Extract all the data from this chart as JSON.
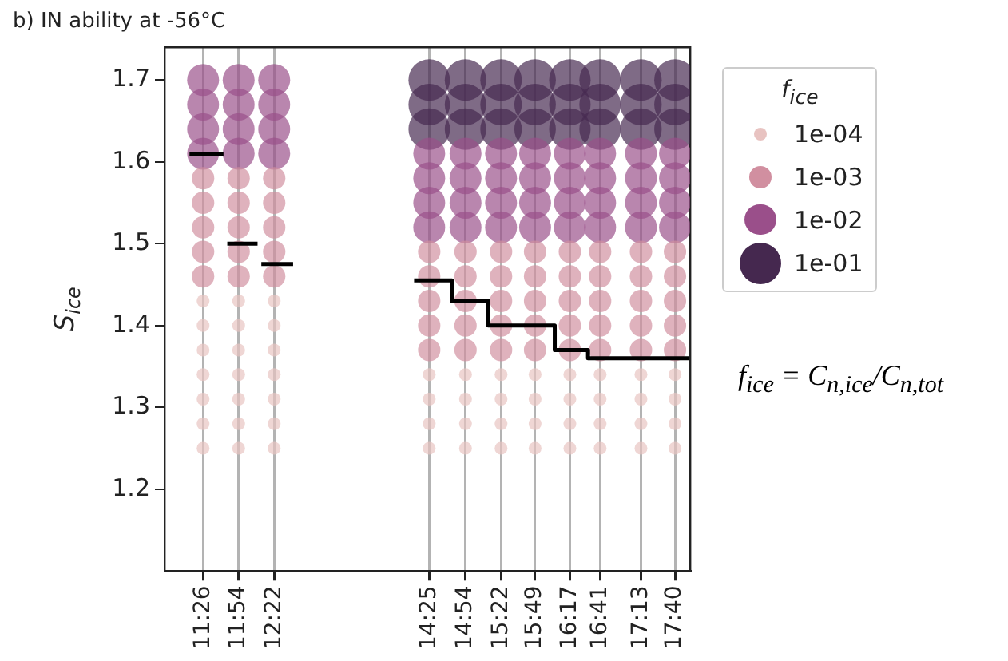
{
  "chart_data": {
    "type": "bubble",
    "title": "b) IN ability at -56°C",
    "ylabel": "S$_{ice}$",
    "legend_title": "f$_{ice}$",
    "grid": "x",
    "xlim": [
      10.92,
      17.87
    ],
    "xticks": [
      {
        "value": 11.43,
        "label": "11:26"
      },
      {
        "value": 11.9,
        "label": "11:54"
      },
      {
        "value": 12.37,
        "label": "12:22"
      },
      {
        "value": 14.42,
        "label": "14:25"
      },
      {
        "value": 14.9,
        "label": "14:54"
      },
      {
        "value": 15.37,
        "label": "15:22"
      },
      {
        "value": 15.82,
        "label": "15:49"
      },
      {
        "value": 16.28,
        "label": "16:17"
      },
      {
        "value": 16.68,
        "label": "16:41"
      },
      {
        "value": 17.22,
        "label": "17:13"
      },
      {
        "value": 17.67,
        "label": "17:40"
      }
    ],
    "ylim": [
      1.1,
      1.74
    ],
    "yticks": [
      1.2,
      1.3,
      1.4,
      1.5,
      1.6,
      1.7
    ],
    "size_legend": [
      {
        "value": 0.095,
        "label": "1e-04"
      },
      {
        "value": 0.29,
        "label": "1e-03"
      },
      {
        "value": 0.59,
        "label": "1e-02"
      },
      {
        "value": 1,
        "label": "1e-01"
      }
    ],
    "annotations": [
      "f$_{ice}$ = C$_{n,ice}$/C$_{n,tot}$"
    ],
    "series": [
      {
        "color": "#e8c3c1",
        "x": [
          11.43,
          11.43,
          11.43,
          11.43,
          11.43,
          11.43,
          11.43,
          11.9,
          11.9,
          11.9,
          11.9,
          11.9,
          11.9,
          11.9,
          12.37,
          12.37,
          12.37,
          12.37,
          12.37,
          12.37,
          12.37,
          14.42,
          14.42,
          14.42,
          14.42,
          14.9,
          14.9,
          14.9,
          14.9,
          15.37,
          15.37,
          15.37,
          15.37,
          15.82,
          15.82,
          15.82,
          15.82,
          16.28,
          16.28,
          16.28,
          16.28,
          16.68,
          16.68,
          16.68,
          16.68,
          17.22,
          17.22,
          17.22,
          17.22,
          17.67,
          17.67,
          17.67,
          17.67
        ],
        "values": [
          1.25,
          1.28,
          1.31,
          1.34,
          1.37,
          1.4,
          1.43,
          1.25,
          1.28,
          1.31,
          1.34,
          1.37,
          1.4,
          1.43,
          1.25,
          1.28,
          1.31,
          1.34,
          1.37,
          1.4,
          1.43,
          1.25,
          1.28,
          1.31,
          1.34,
          1.25,
          1.28,
          1.31,
          1.34,
          1.25,
          1.28,
          1.31,
          1.34,
          1.25,
          1.28,
          1.31,
          1.34,
          1.25,
          1.28,
          1.31,
          1.34,
          1.25,
          1.28,
          1.31,
          1.34,
          1.25,
          1.28,
          1.31,
          1.34,
          1.25,
          1.28,
          1.31,
          1.34
        ],
        "sizes": [
          0.095,
          0.095,
          0.095,
          0.095,
          0.095,
          0.095,
          0.095,
          0.095,
          0.095,
          0.095,
          0.095,
          0.095,
          0.095,
          0.095,
          0.095,
          0.095,
          0.095,
          0.095,
          0.095,
          0.095,
          0.095,
          0.095,
          0.095,
          0.095,
          0.095,
          0.095,
          0.095,
          0.095,
          0.095,
          0.095,
          0.095,
          0.095,
          0.095,
          0.095,
          0.095,
          0.095,
          0.095,
          0.095,
          0.095,
          0.095,
          0.095,
          0.095,
          0.095,
          0.095,
          0.095,
          0.095,
          0.095,
          0.095,
          0.095,
          0.095,
          0.095,
          0.095,
          0.095
        ]
      },
      {
        "color": "#d18fa0",
        "x": [
          11.43,
          11.43,
          11.43,
          11.43,
          11.43,
          11.9,
          11.9,
          11.9,
          11.9,
          11.9,
          12.37,
          12.37,
          12.37,
          12.37,
          12.37,
          14.42,
          14.42,
          14.42,
          14.42,
          14.42,
          14.9,
          14.9,
          14.9,
          14.9,
          14.9,
          15.37,
          15.37,
          15.37,
          15.37,
          15.37,
          15.82,
          15.82,
          15.82,
          15.82,
          15.82,
          16.28,
          16.28,
          16.28,
          16.28,
          16.28,
          16.68,
          16.68,
          16.68,
          16.68,
          16.68,
          17.22,
          17.22,
          17.22,
          17.22,
          17.22,
          17.67,
          17.67,
          17.67,
          17.67,
          17.67
        ],
        "values": [
          1.46,
          1.49,
          1.52,
          1.55,
          1.58,
          1.46,
          1.49,
          1.52,
          1.55,
          1.58,
          1.46,
          1.49,
          1.52,
          1.55,
          1.58,
          1.37,
          1.4,
          1.43,
          1.46,
          1.49,
          1.37,
          1.4,
          1.43,
          1.46,
          1.49,
          1.37,
          1.4,
          1.43,
          1.46,
          1.49,
          1.37,
          1.4,
          1.43,
          1.46,
          1.49,
          1.37,
          1.4,
          1.43,
          1.46,
          1.49,
          1.37,
          1.4,
          1.43,
          1.46,
          1.49,
          1.37,
          1.4,
          1.43,
          1.46,
          1.49,
          1.37,
          1.4,
          1.43,
          1.46,
          1.49
        ],
        "sizes": [
          0.29,
          0.29,
          0.29,
          0.29,
          0.29,
          0.29,
          0.29,
          0.29,
          0.29,
          0.29,
          0.29,
          0.29,
          0.29,
          0.29,
          0.29,
          0.29,
          0.29,
          0.29,
          0.29,
          0.29,
          0.29,
          0.29,
          0.29,
          0.29,
          0.29,
          0.29,
          0.29,
          0.29,
          0.29,
          0.29,
          0.29,
          0.29,
          0.29,
          0.29,
          0.29,
          0.29,
          0.29,
          0.29,
          0.29,
          0.29,
          0.29,
          0.29,
          0.29,
          0.29,
          0.29,
          0.29,
          0.29,
          0.29,
          0.29,
          0.29,
          0.29,
          0.29,
          0.29,
          0.29,
          0.29
        ]
      },
      {
        "color": "#9a4f8a",
        "x": [
          11.43,
          11.43,
          11.43,
          11.43,
          11.9,
          11.9,
          11.9,
          11.9,
          12.37,
          12.37,
          12.37,
          12.37,
          14.42,
          14.42,
          14.42,
          14.42,
          14.9,
          14.9,
          14.9,
          14.9,
          15.37,
          15.37,
          15.37,
          15.37,
          15.82,
          15.82,
          15.82,
          15.82,
          16.28,
          16.28,
          16.28,
          16.28,
          16.68,
          16.68,
          16.68,
          16.68,
          17.22,
          17.22,
          17.22,
          17.22,
          17.67,
          17.67,
          17.67,
          17.67
        ],
        "values": [
          1.61,
          1.64,
          1.67,
          1.7,
          1.61,
          1.64,
          1.67,
          1.7,
          1.61,
          1.64,
          1.67,
          1.7,
          1.52,
          1.55,
          1.58,
          1.61,
          1.52,
          1.55,
          1.58,
          1.61,
          1.52,
          1.55,
          1.58,
          1.61,
          1.52,
          1.55,
          1.58,
          1.61,
          1.52,
          1.55,
          1.58,
          1.61,
          1.52,
          1.55,
          1.58,
          1.61,
          1.52,
          1.55,
          1.58,
          1.61,
          1.52,
          1.55,
          1.58,
          1.61
        ],
        "sizes": [
          0.59,
          0.59,
          0.59,
          0.59,
          0.59,
          0.59,
          0.59,
          0.59,
          0.59,
          0.59,
          0.59,
          0.59,
          0.59,
          0.59,
          0.59,
          0.59,
          0.59,
          0.59,
          0.59,
          0.59,
          0.59,
          0.59,
          0.59,
          0.59,
          0.59,
          0.59,
          0.59,
          0.59,
          0.59,
          0.59,
          0.59,
          0.59,
          0.59,
          0.59,
          0.59,
          0.59,
          0.59,
          0.59,
          0.59,
          0.59,
          0.59,
          0.59,
          0.59,
          0.59
        ]
      },
      {
        "color": "#45284f",
        "x": [
          14.42,
          14.42,
          14.42,
          14.9,
          14.9,
          14.9,
          15.37,
          15.37,
          15.37,
          15.82,
          15.82,
          15.82,
          16.28,
          16.28,
          16.28,
          16.68,
          16.68,
          16.68,
          17.22,
          17.22,
          17.22,
          17.67,
          17.67,
          17.67
        ],
        "values": [
          1.64,
          1.67,
          1.7,
          1.64,
          1.67,
          1.7,
          1.64,
          1.67,
          1.7,
          1.64,
          1.67,
          1.7,
          1.64,
          1.67,
          1.7,
          1.64,
          1.67,
          1.7,
          1.64,
          1.67,
          1.7,
          1.64,
          1.67,
          1.7
        ],
        "sizes": [
          1,
          1,
          1,
          1,
          1,
          1,
          1,
          1,
          1,
          1,
          1,
          1,
          1,
          1,
          1,
          1,
          1,
          1,
          1,
          1,
          1,
          1,
          1,
          1
        ]
      },
      {
        "type": "line",
        "color": "#000000",
        "x": [
          11.25,
          11.7,
          11.72,
          11.75,
          12.15,
          12.17,
          12.2,
          12.62,
          13.4,
          14.22,
          14.72,
          14.72,
          15.2,
          15.2,
          15.62,
          15.62,
          16.08,
          16.08,
          16.52,
          16.52,
          17.85
        ],
        "values": [
          1.61,
          1.61,
          null,
          1.5,
          1.5,
          null,
          1.475,
          1.475,
          null,
          1.455,
          1.455,
          1.43,
          1.43,
          1.4,
          1.4,
          1.4,
          1.4,
          1.37,
          1.37,
          1.36,
          1.36
        ]
      }
    ]
  }
}
